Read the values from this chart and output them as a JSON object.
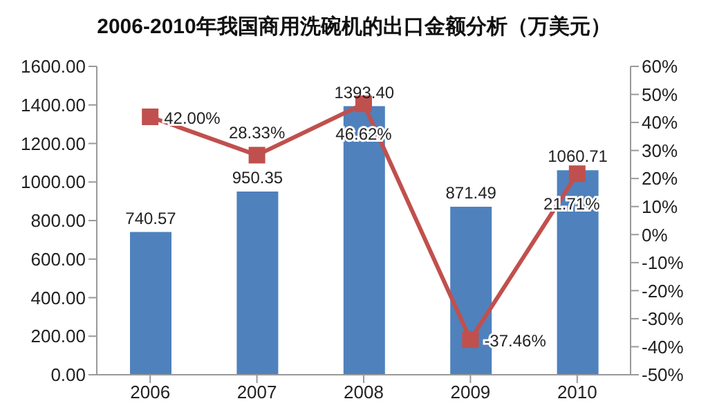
{
  "chart_data": {
    "type": "bar",
    "title": "2006-2010年我国商用洗碗机的出口金额分析（万美元）",
    "categories": [
      "2006",
      "2007",
      "2008",
      "2009",
      "2010"
    ],
    "series": [
      {
        "color": "#4f81bd",
        "values": [
          740.57,
          950.35,
          1393.4,
          871.49,
          1060.71
        ],
        "value_labels": [
          "740.57",
          "950.35",
          "1393.40",
          "871.49",
          "1060.71"
        ]
      },
      {
        "type": "line",
        "axis": "y2",
        "color": "#c0504d",
        "marker": "square",
        "values": [
          42.0,
          28.33,
          46.62,
          -37.46,
          21.71
        ],
        "value_labels": [
          "42.00%",
          "28.33%",
          "46.62%",
          "-37.46%",
          "21.71%"
        ]
      }
    ],
    "ylim": [
      0,
      1600
    ],
    "yticks": [
      {
        "value": 0,
        "label": "0.00"
      },
      {
        "value": 200,
        "label": "200.00"
      },
      {
        "value": 400,
        "label": "400.00"
      },
      {
        "value": 600,
        "label": "600.00"
      },
      {
        "value": 800,
        "label": "800.00"
      },
      {
        "value": 1000,
        "label": "1000.00"
      },
      {
        "value": 1200,
        "label": "1200.00"
      },
      {
        "value": 1400,
        "label": "1400.00"
      },
      {
        "value": 1600,
        "label": "1600.00"
      }
    ],
    "y2lim": [
      -50,
      60
    ],
    "y2ticks": [
      {
        "value": -50,
        "label": "-50%"
      },
      {
        "value": -40,
        "label": "-40%"
      },
      {
        "value": -30,
        "label": "-30%"
      },
      {
        "value": -20,
        "label": "-20%"
      },
      {
        "value": -10,
        "label": "-10%"
      },
      {
        "value": 0,
        "label": "0%"
      },
      {
        "value": 10,
        "label": "10%"
      },
      {
        "value": 20,
        "label": "20%"
      },
      {
        "value": 30,
        "label": "30%"
      },
      {
        "value": 40,
        "label": "40%"
      },
      {
        "value": 50,
        "label": "50%"
      },
      {
        "value": 60,
        "label": "60%"
      }
    ],
    "grid": false,
    "legend": false
  }
}
